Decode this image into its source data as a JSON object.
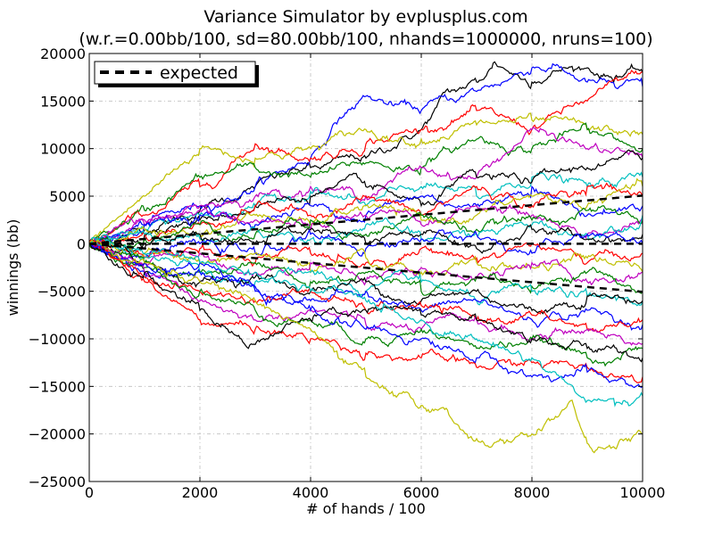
{
  "chart_data": {
    "type": "line",
    "title": "Variance Simulator by evplusplus.com",
    "subtitle": "(w.r.=0.00bb/100, sd=80.00bb/100, nhands=1000000, nruns=100)",
    "xlabel": "# of hands / 100",
    "ylabel": "winnings (bb)",
    "xlim": [
      0,
      10000
    ],
    "ylim": [
      -25000,
      20000
    ],
    "x_ticks": [
      0,
      2000,
      4000,
      6000,
      8000,
      10000
    ],
    "x_tick_labels": [
      "0",
      "2000",
      "4000",
      "6000",
      "8000",
      "10000"
    ],
    "y_ticks": [
      -25000,
      -20000,
      -15000,
      -10000,
      -5000,
      0,
      5000,
      10000,
      15000,
      20000
    ],
    "y_tick_labels": [
      "−25000",
      "−20000",
      "−15000",
      "−10000",
      "−5000",
      "0",
      "5000",
      "10000",
      "15000",
      "20000"
    ],
    "grid": true,
    "legend_position": "upper-left",
    "legend": [
      {
        "label": "expected",
        "style": "dashed",
        "color": "#000000"
      }
    ],
    "series_colors": [
      "#0000ff",
      "#008000",
      "#ff0000",
      "#00bfbf",
      "#bf00bf",
      "#bfbf00",
      "#000000"
    ],
    "expected_lines": [
      {
        "values_x": [
          0,
          10000
        ],
        "values_y": [
          0,
          0
        ]
      },
      {
        "values_x": [
          0,
          10000
        ],
        "values_y": [
          0,
          5060
        ]
      },
      {
        "values_x": [
          0,
          10000
        ],
        "values_y": [
          0,
          -5060
        ]
      }
    ],
    "series": [
      {
        "color": "#000000",
        "x": [
          0,
          1000,
          2000,
          3000,
          4000,
          5000,
          6000,
          6500,
          7000,
          7300,
          8000,
          8600,
          9000,
          9500,
          10000
        ],
        "y": [
          0,
          1500,
          3500,
          6000,
          8000,
          9000,
          12000,
          16000,
          17000,
          19000,
          17000,
          18500,
          18500,
          17500,
          18000
        ]
      },
      {
        "color": "#0000ff",
        "x": [
          0,
          1000,
          2000,
          3000,
          4000,
          4500,
          5000,
          5500,
          6000,
          7000,
          8000,
          8500,
          9000,
          9500,
          10000
        ],
        "y": [
          0,
          2000,
          4000,
          6000,
          9000,
          13000,
          15500,
          14500,
          14000,
          16000,
          18500,
          18500,
          17000,
          16500,
          16500
        ]
      },
      {
        "color": "#ff0000",
        "x": [
          0,
          1000,
          2000,
          3000,
          4000,
          5000,
          6000,
          7000,
          8000,
          9000,
          10000
        ],
        "y": [
          0,
          3000,
          6000,
          10500,
          9000,
          10500,
          12000,
          14000,
          12000,
          15000,
          18000
        ]
      },
      {
        "color": "#bfbf00",
        "x": [
          0,
          1000,
          2000,
          3000,
          4000,
          5000,
          6000,
          7000,
          8000,
          9000,
          10000
        ],
        "y": [
          0,
          5000,
          10000,
          9000,
          10000,
          12000,
          11000,
          12500,
          13000,
          12000,
          11500
        ]
      },
      {
        "color": "#008000",
        "x": [
          0,
          1000,
          2000,
          3000,
          4000,
          5000,
          6000,
          7000,
          8000,
          9000,
          10000
        ],
        "y": [
          0,
          3500,
          7000,
          8000,
          7000,
          8500,
          8000,
          11000,
          10000,
          12000,
          10000
        ]
      },
      {
        "color": "#bf00bf",
        "x": [
          0,
          1000,
          2000,
          3000,
          4000,
          5000,
          6000,
          7000,
          8000,
          9000,
          10000
        ],
        "y": [
          0,
          2000,
          4000,
          5000,
          6000,
          5000,
          8000,
          7000,
          12000,
          10000,
          9000
        ]
      },
      {
        "color": "#00bfbf",
        "x": [
          0,
          1000,
          2000,
          3000,
          4000,
          5000,
          6000,
          7000,
          8000,
          9000,
          10000
        ],
        "y": [
          0,
          1500,
          3000,
          4000,
          5500,
          4000,
          6000,
          5000,
          7000,
          6000,
          7000
        ]
      },
      {
        "color": "#000000",
        "x": [
          0,
          1000,
          2000,
          3000,
          4000,
          5000,
          6000,
          7000,
          8000,
          9000,
          10000
        ],
        "y": [
          0,
          1000,
          2500,
          4000,
          5000,
          6000,
          4000,
          7000,
          6500,
          8000,
          9000
        ]
      },
      {
        "color": "#0000ff",
        "x": [
          0,
          1000,
          2000,
          3000,
          4000,
          5000,
          6000,
          7000,
          8000,
          9000,
          10000
        ],
        "y": [
          0,
          2000,
          3000,
          2000,
          4000,
          3000,
          5000,
          4000,
          6000,
          3000,
          4000
        ]
      },
      {
        "color": "#ff0000",
        "x": [
          0,
          1000,
          2000,
          3000,
          4000,
          5000,
          6000,
          7000,
          8000,
          9000,
          10000
        ],
        "y": [
          0,
          1000,
          2000,
          4000,
          3000,
          5000,
          3000,
          6000,
          4000,
          6000,
          5000
        ]
      },
      {
        "color": "#bfbf00",
        "x": [
          0,
          1000,
          2000,
          3000,
          4000,
          5000,
          6000,
          7000,
          8000,
          9000,
          10000
        ],
        "y": [
          0,
          1500,
          1000,
          3000,
          2000,
          4000,
          2500,
          3000,
          5000,
          4000,
          6000
        ]
      },
      {
        "color": "#bf00bf",
        "x": [
          0,
          1000,
          2000,
          3000,
          4000,
          5000,
          6000,
          7000,
          8000,
          9000,
          10000
        ],
        "y": [
          0,
          2500,
          3500,
          2500,
          1500,
          3000,
          2000,
          4000,
          3000,
          1000,
          2000
        ]
      },
      {
        "color": "#008000",
        "x": [
          0,
          1000,
          2000,
          3000,
          4000,
          5000,
          6000,
          7000,
          8000,
          9000,
          10000
        ],
        "y": [
          0,
          500,
          2000,
          1000,
          2500,
          1000,
          3000,
          1500,
          2500,
          3500,
          2500
        ]
      },
      {
        "color": "#00bfbf",
        "x": [
          0,
          1000,
          2000,
          3000,
          4000,
          5000,
          6000,
          7000,
          8000,
          9000,
          10000
        ],
        "y": [
          0,
          1000,
          500,
          1500,
          500,
          2000,
          500,
          1000,
          2000,
          1000,
          3000
        ]
      },
      {
        "color": "#000000",
        "x": [
          0,
          1000,
          2000,
          3000,
          4000,
          5000,
          6000,
          7000,
          8000,
          9000,
          10000
        ],
        "y": [
          0,
          -500,
          1000,
          0,
          1500,
          0,
          1000,
          -500,
          1500,
          500,
          1000
        ]
      },
      {
        "color": "#0000ff",
        "x": [
          0,
          1000,
          2000,
          3000,
          4000,
          5000,
          6000,
          7000,
          8000,
          9000,
          10000
        ],
        "y": [
          0,
          -1000,
          0,
          -1000,
          1000,
          -500,
          500,
          1000,
          -1000,
          1000,
          0
        ]
      },
      {
        "color": "#ff0000",
        "x": [
          0,
          1000,
          2000,
          3000,
          4000,
          5000,
          6000,
          7000,
          8000,
          9000,
          10000
        ],
        "y": [
          0,
          -1500,
          -500,
          -2000,
          -1000,
          -2000,
          -500,
          -1500,
          0,
          -2000,
          -1000
        ]
      },
      {
        "color": "#bfbf00",
        "x": [
          0,
          1000,
          2000,
          3000,
          4000,
          5000,
          6000,
          7000,
          8000,
          9000,
          10000
        ],
        "y": [
          0,
          -1000,
          -2000,
          -1000,
          -3000,
          -1500,
          -3000,
          -2000,
          -2500,
          -1500,
          -3000
        ]
      },
      {
        "color": "#bf00bf",
        "x": [
          0,
          1000,
          2000,
          3000,
          4000,
          5000,
          6000,
          7000,
          8000,
          9000,
          10000
        ],
        "y": [
          0,
          -2000,
          -1000,
          -3000,
          -2000,
          -4000,
          -2500,
          -3500,
          -2000,
          -4000,
          -3000
        ]
      },
      {
        "color": "#008000",
        "x": [
          0,
          1000,
          2000,
          3000,
          4000,
          5000,
          6000,
          7000,
          8000,
          9000,
          10000
        ],
        "y": [
          0,
          -2500,
          -3000,
          -2000,
          -4000,
          -3000,
          -5000,
          -3500,
          -4500,
          -3000,
          -5000
        ]
      },
      {
        "color": "#00bfbf",
        "x": [
          0,
          1000,
          2000,
          3000,
          4000,
          5000,
          6000,
          7000,
          8000,
          9000,
          10000
        ],
        "y": [
          0,
          -1500,
          -3000,
          -4000,
          -3000,
          -5000,
          -4000,
          -6000,
          -5000,
          -5500,
          -6000
        ]
      },
      {
        "color": "#000000",
        "x": [
          0,
          1000,
          2000,
          3000,
          4000,
          5000,
          6000,
          7000,
          8000,
          9000,
          10000
        ],
        "y": [
          0,
          -2000,
          -4000,
          -3500,
          -5000,
          -4000,
          -6000,
          -5000,
          -7000,
          -5500,
          -6000
        ]
      },
      {
        "color": "#0000ff",
        "x": [
          0,
          1000,
          2000,
          3000,
          4000,
          5000,
          6000,
          7000,
          8000,
          9000,
          10000
        ],
        "y": [
          0,
          -3000,
          -2000,
          -4500,
          -6000,
          -5000,
          -7000,
          -6000,
          -8000,
          -7000,
          -8500
        ]
      },
      {
        "color": "#ff0000",
        "x": [
          0,
          1000,
          2000,
          3000,
          4000,
          5000,
          6000,
          7000,
          8000,
          9000,
          10000
        ],
        "y": [
          0,
          -3500,
          -5000,
          -6000,
          -5000,
          -7000,
          -6500,
          -8000,
          -7500,
          -9000,
          -8000
        ]
      },
      {
        "color": "#bf00bf",
        "x": [
          0,
          1000,
          2000,
          3000,
          4000,
          5000,
          6000,
          7000,
          8000,
          9000,
          10000
        ],
        "y": [
          0,
          -3000,
          -6000,
          -8000,
          -7000,
          -8500,
          -9000,
          -8000,
          -10000,
          -9000,
          -10500
        ]
      },
      {
        "color": "#008000",
        "x": [
          0,
          1000,
          2000,
          3000,
          4000,
          5000,
          6000,
          7000,
          8000,
          9000,
          10000
        ],
        "y": [
          0,
          -2000,
          -5000,
          -7000,
          -8000,
          -10000,
          -9000,
          -11000,
          -10000,
          -12000,
          -11000
        ]
      },
      {
        "color": "#ff0000",
        "x": [
          0,
          1000,
          2000,
          3000,
          4000,
          5000,
          6000,
          7000,
          8000,
          9000,
          10000
        ],
        "y": [
          0,
          -4000,
          -8000,
          -9000,
          -10000,
          -11500,
          -12000,
          -13000,
          -12500,
          -13000,
          -14000
        ]
      },
      {
        "color": "#000000",
        "x": [
          0,
          1000,
          1500,
          2000,
          2800,
          3500,
          4000,
          5000,
          6000,
          7000,
          8000,
          9000,
          10000
        ],
        "y": [
          0,
          -3000,
          -5000,
          -7000,
          -10500,
          -9000,
          -8000,
          -7000,
          -7500,
          -8000,
          -10000,
          -11000,
          -12000
        ]
      },
      {
        "color": "#0000ff",
        "x": [
          0,
          1000,
          2000,
          3000,
          4000,
          5000,
          6000,
          7000,
          8000,
          9000,
          10000
        ],
        "y": [
          0,
          -2000,
          -3000,
          -5000,
          -7000,
          -9000,
          -10000,
          -12000,
          -14000,
          -13500,
          -15000
        ]
      },
      {
        "color": "#00bfbf",
        "x": [
          0,
          1000,
          2000,
          3000,
          4000,
          5000,
          6000,
          7000,
          8000,
          8500,
          9000,
          9500,
          10000
        ],
        "y": [
          0,
          -1000,
          -2000,
          -3000,
          -5000,
          -6000,
          -8000,
          -10000,
          -12000,
          -14000,
          -16500,
          -17000,
          -16000
        ]
      },
      {
        "color": "#bfbf00",
        "x": [
          0,
          1000,
          2000,
          3000,
          4000,
          4500,
          5000,
          5500,
          6000,
          6500,
          7000,
          7500,
          8000,
          8500,
          8700,
          9000,
          9500,
          10000
        ],
        "y": [
          0,
          -2000,
          -4000,
          -6000,
          -9000,
          -12000,
          -14000,
          -16000,
          -17000,
          -18000,
          -20500,
          -21000,
          -20000,
          -18000,
          -16500,
          -21000,
          -21500,
          -20000
        ]
      }
    ]
  }
}
